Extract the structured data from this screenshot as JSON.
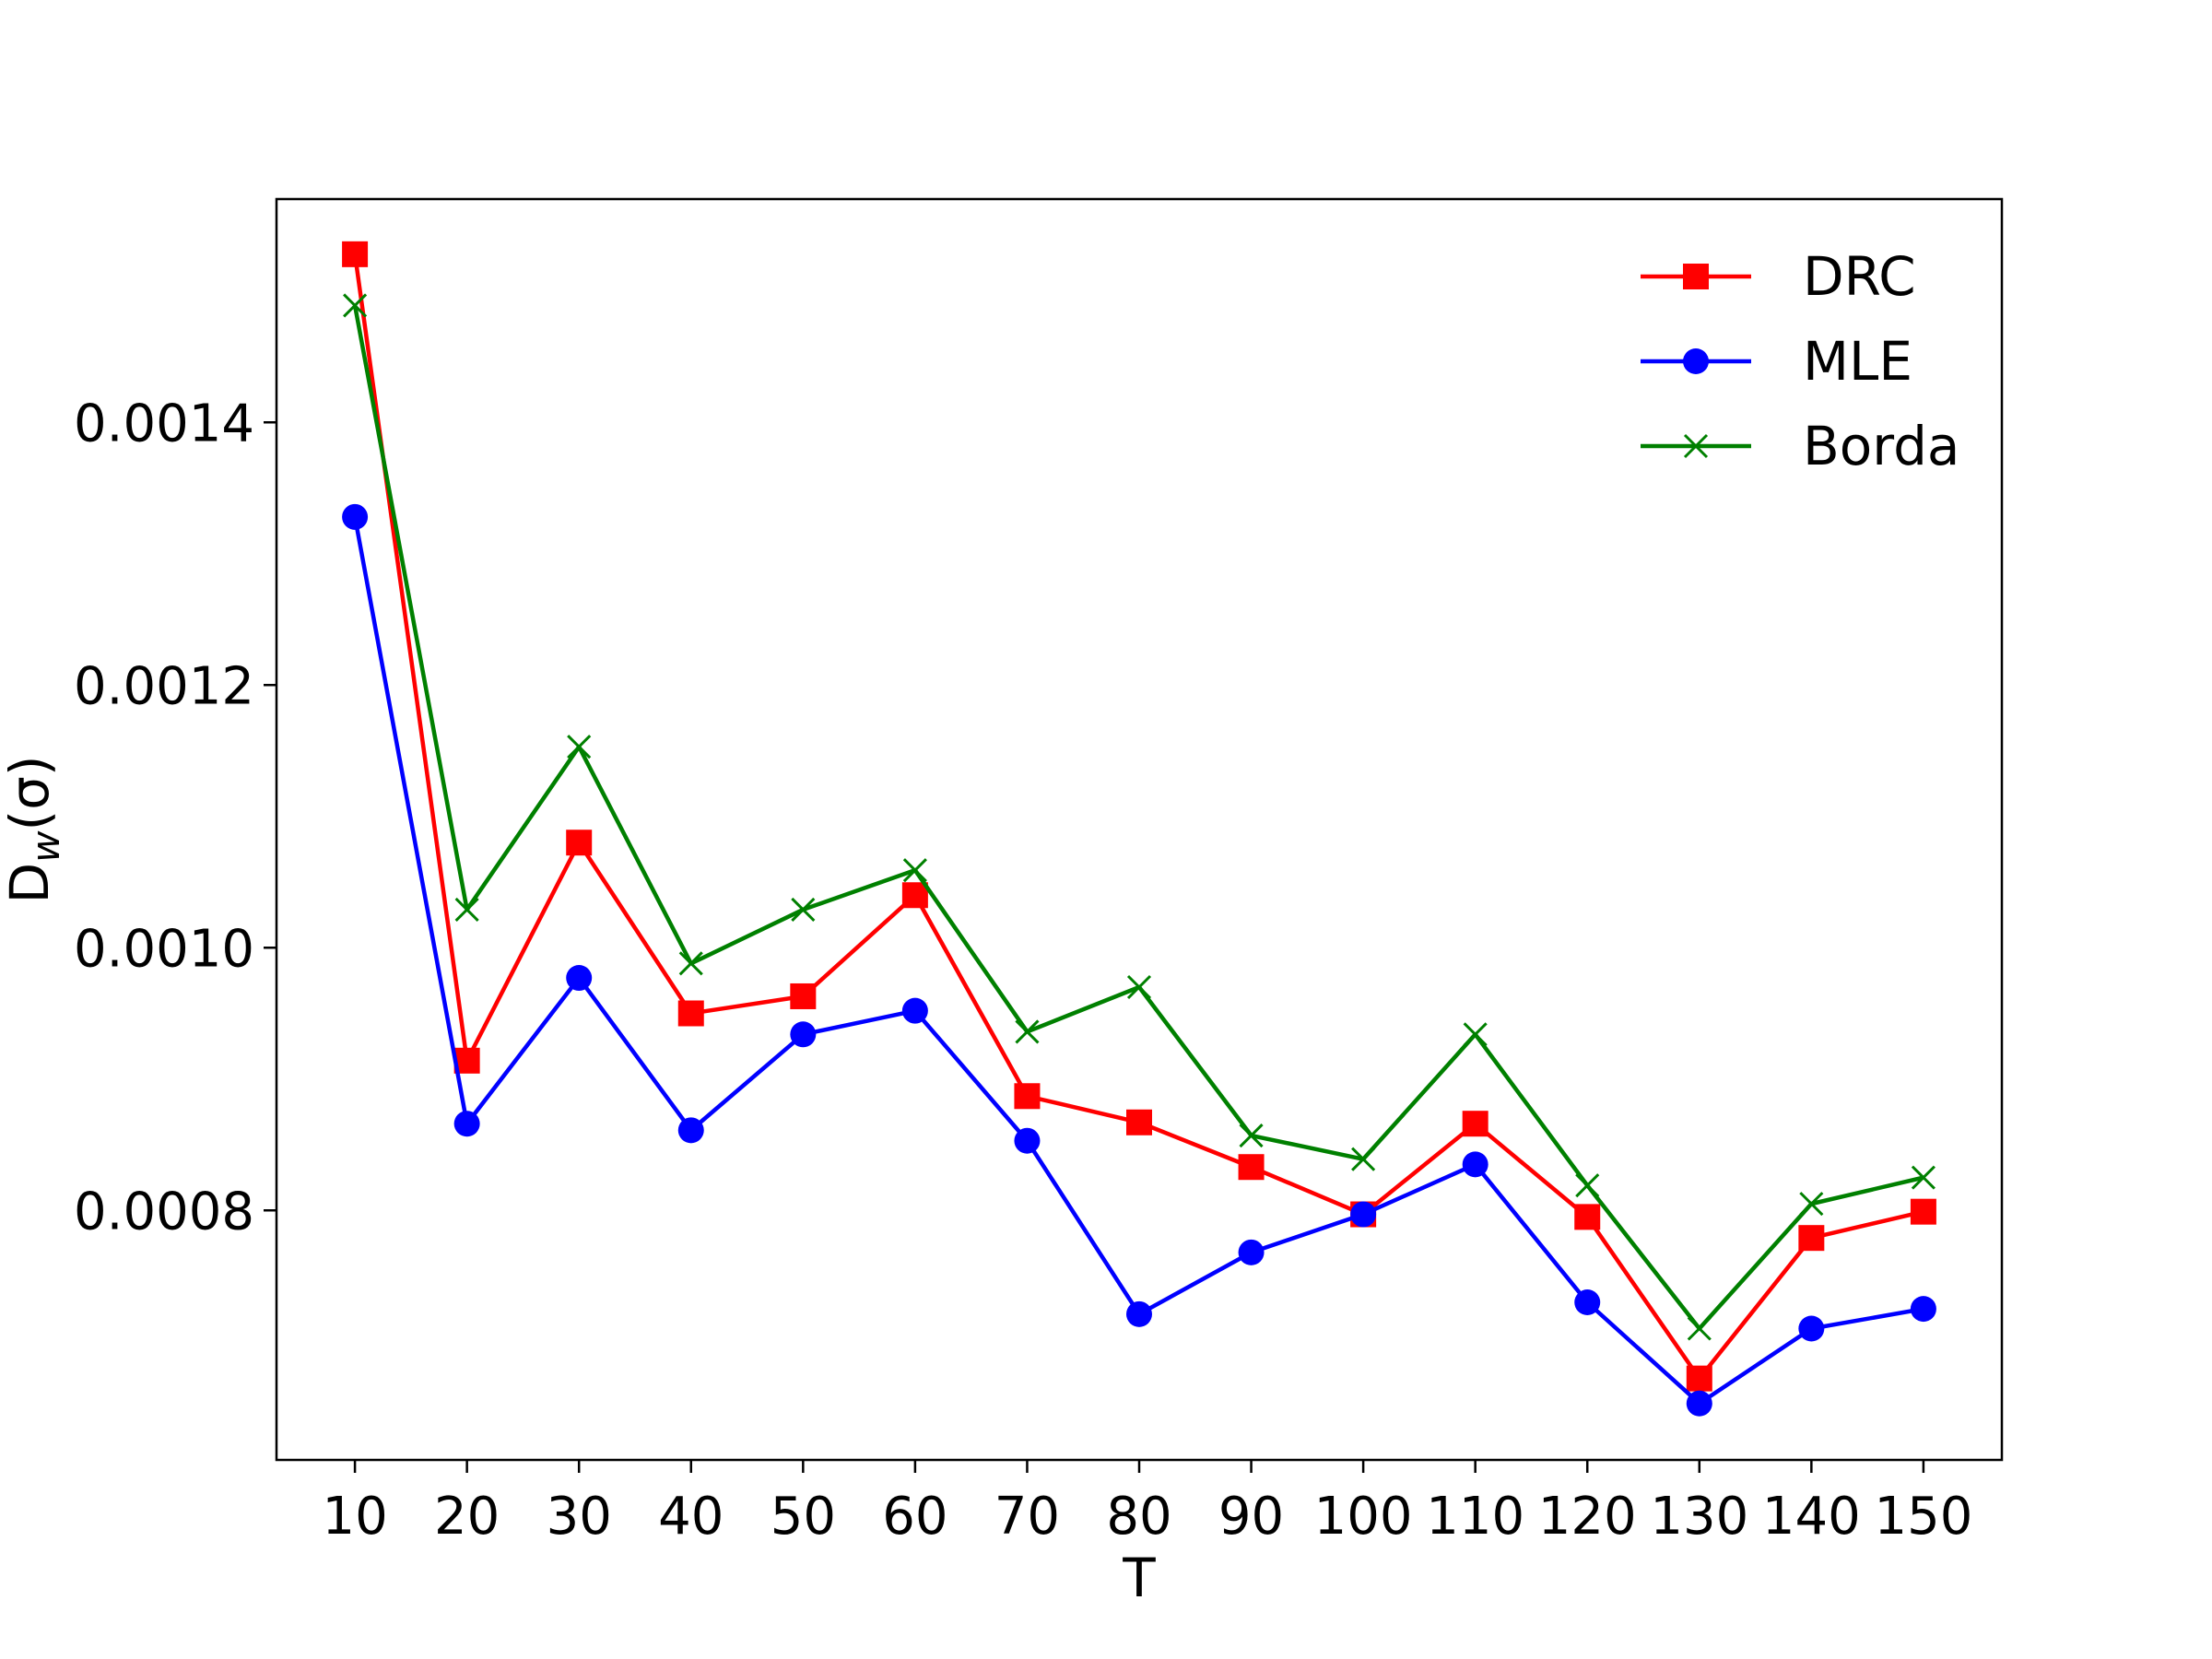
{
  "chart_data": {
    "type": "line",
    "xlabel": "T",
    "ylabel": {
      "base": "D",
      "sub": "w",
      "suffix": "(σ)"
    },
    "x": [
      10,
      20,
      30,
      40,
      50,
      60,
      70,
      80,
      90,
      100,
      110,
      120,
      130,
      140,
      150
    ],
    "xticklabels": [
      "10",
      "20",
      "30",
      "40",
      "50",
      "60",
      "70",
      "80",
      "90",
      "100",
      "110",
      "120",
      "130",
      "140",
      "150"
    ],
    "yticks": [
      0.0008,
      0.001,
      0.0012,
      0.0014
    ],
    "yticklabels": [
      "0.0008",
      "0.0010",
      "0.0012",
      "0.0014"
    ],
    "xlim": [
      3,
      157
    ],
    "ylim": [
      0.00061,
      0.00157
    ],
    "grid": false,
    "legend_position": "top-right",
    "series": [
      {
        "name": "DRC",
        "color": "#ff0000",
        "marker": "square",
        "values": [
          0.001528,
          0.000914,
          0.00108,
          0.00095,
          0.000963,
          0.00104,
          0.000887,
          0.000867,
          0.000833,
          0.000797,
          0.000866,
          0.000795,
          0.000672,
          0.000779,
          0.000799
        ]
      },
      {
        "name": "MLE",
        "color": "#0000ff",
        "marker": "circle",
        "values": [
          0.001328,
          0.000866,
          0.000977,
          0.000861,
          0.000934,
          0.000952,
          0.000853,
          0.000721,
          0.000768,
          0.000797,
          0.000835,
          0.00073,
          0.000653,
          0.00071,
          0.000725
        ]
      },
      {
        "name": "Borda",
        "color": "#008000",
        "marker": "x",
        "values": [
          0.001489,
          0.001029,
          0.001153,
          0.000988,
          0.001029,
          0.001059,
          0.000936,
          0.00097,
          0.000857,
          0.000839,
          0.000934,
          0.000819,
          0.00071,
          0.000805,
          0.000825
        ]
      }
    ]
  }
}
